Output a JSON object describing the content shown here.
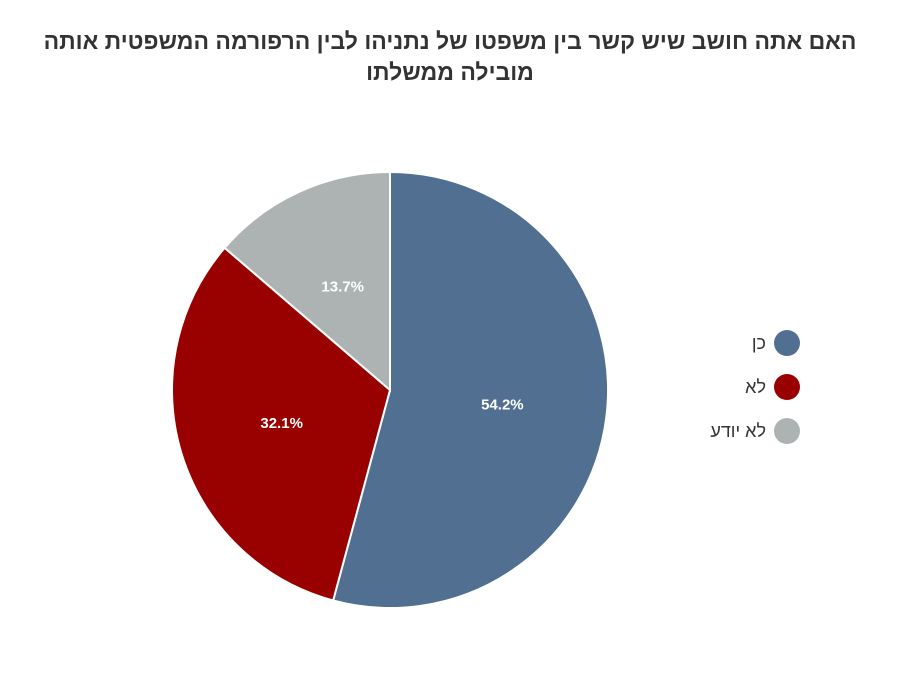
{
  "chart_data": {
    "type": "pie",
    "title": "האם אתה חושב שיש קשר בין משפטו של נתניהו לבין הרפורמה המשפטית אותה מובילה ממשלתו",
    "categories": [
      "כן",
      "לא",
      "לא יודע"
    ],
    "values": [
      54.2,
      32.1,
      13.7
    ],
    "value_labels": [
      "54.2%",
      "32.1%",
      "13.7%"
    ],
    "colors": [
      "#506f91",
      "#990000",
      "#adb3b3"
    ],
    "start": "top",
    "direction": "clockwise",
    "legend_position": "right"
  }
}
